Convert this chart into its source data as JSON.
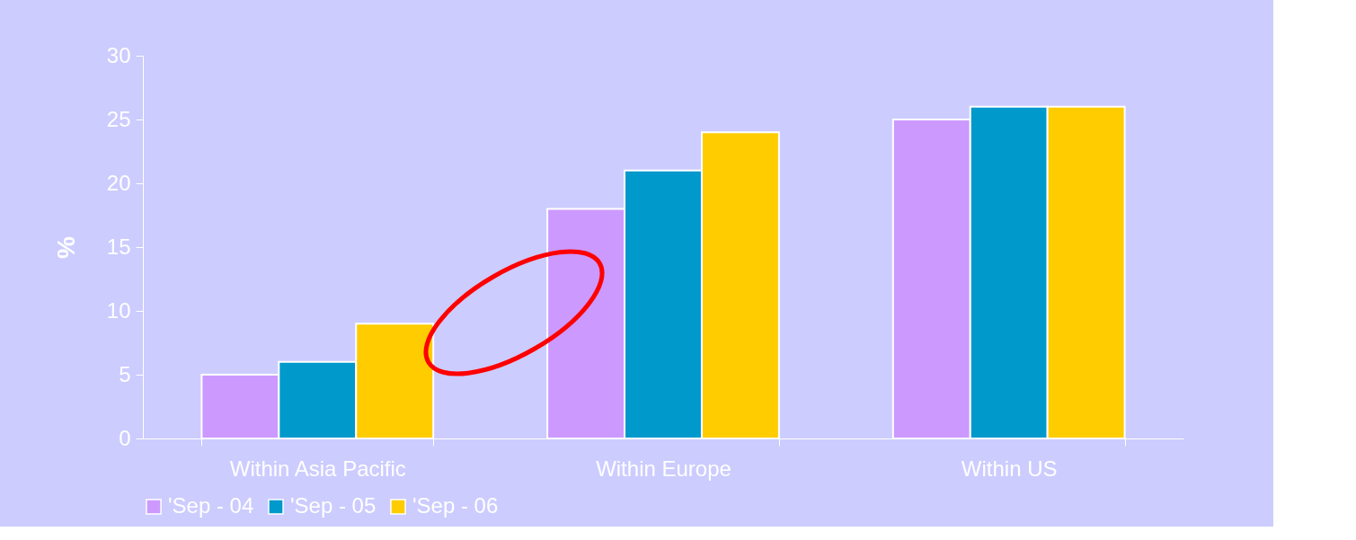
{
  "chart_data": {
    "type": "bar",
    "ylabel": "%",
    "categories": [
      "Within Asia Pacific",
      "Within Europe",
      "Within US"
    ],
    "series": [
      {
        "name": "'Sep - 04",
        "color": "#cc99ff",
        "values": [
          5,
          18,
          25
        ]
      },
      {
        "name": "'Sep - 05",
        "color": "#0099cc",
        "values": [
          6,
          21,
          26
        ]
      },
      {
        "name": "'Sep - 06",
        "color": "#ffcc00",
        "values": [
          9,
          24,
          26
        ]
      }
    ],
    "ylim": [
      0,
      30
    ],
    "yticks": [
      0,
      5,
      10,
      15,
      20,
      25,
      30
    ],
    "grid": false,
    "legend": "bottom"
  }
}
